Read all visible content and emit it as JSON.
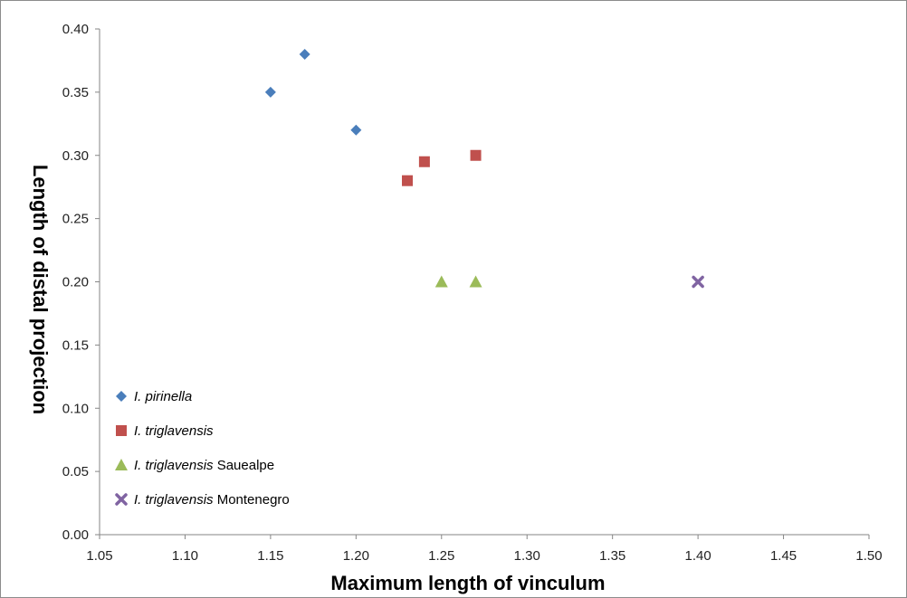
{
  "chart_data": {
    "type": "scatter",
    "xlabel": "Maximum length of vinculum",
    "ylabel": "Length of distal projection",
    "xlim": [
      1.05,
      1.5
    ],
    "ylim": [
      0.0,
      0.4
    ],
    "x_ticks": [
      "1.05",
      "1.10",
      "1.15",
      "1.20",
      "1.25",
      "1.30",
      "1.35",
      "1.40",
      "1.45",
      "1.50"
    ],
    "y_ticks": [
      "0.00",
      "0.05",
      "0.10",
      "0.15",
      "0.20",
      "0.25",
      "0.30",
      "0.35",
      "0.40"
    ],
    "grid": false,
    "legend_position": "bottom-left inside",
    "series": [
      {
        "name": "I. pirinella",
        "name_italic": "I. pirinella",
        "name_suffix": "",
        "marker": "diamond",
        "color": "#4a7ebb",
        "points": [
          {
            "x": 1.15,
            "y": 0.35
          },
          {
            "x": 1.17,
            "y": 0.38
          },
          {
            "x": 1.2,
            "y": 0.32
          }
        ]
      },
      {
        "name": "I. triglavensis",
        "name_italic": "I. triglavensis",
        "name_suffix": "",
        "marker": "square",
        "color": "#c0504d",
        "points": [
          {
            "x": 1.23,
            "y": 0.28
          },
          {
            "x": 1.24,
            "y": 0.295
          },
          {
            "x": 1.27,
            "y": 0.3
          }
        ]
      },
      {
        "name": "I. triglavensis Sauealpe",
        "name_italic": "I. triglavensis",
        "name_suffix": " Sauealpe",
        "marker": "triangle",
        "color": "#9bbb59",
        "points": [
          {
            "x": 1.25,
            "y": 0.2
          },
          {
            "x": 1.27,
            "y": 0.2
          }
        ]
      },
      {
        "name": "I. triglavensis Montenegro",
        "name_italic": "I. triglavensis",
        "name_suffix": " Montenegro",
        "marker": "x",
        "color": "#8064a2",
        "points": [
          {
            "x": 1.4,
            "y": 0.2
          }
        ]
      }
    ]
  }
}
